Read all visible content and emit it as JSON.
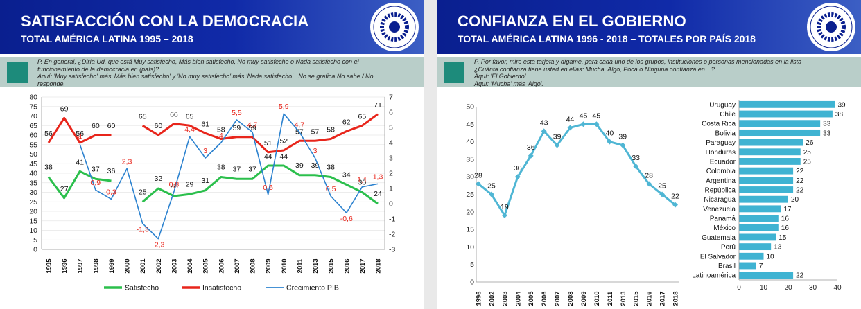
{
  "left": {
    "header": {
      "title": "SATISFACCIÓN CON LA DEMOCRACIA",
      "subtitle": "TOTAL AMÉRICA LATINA 1995 – 2018"
    },
    "question": {
      "lines": [
        "P. En general, ¿Diría Ud. que está Muy satisfecho, Más bien satisfecho, No muy satisfecho o Nada satisfecho con el",
        "funcionamiento de la democracia en (país)?",
        "Aquí: 'Muy satisfecho' más 'Más bien satisfecho' y 'No muy satisfecho' más 'Nada satisfecho' . No se grafica No sabe / No",
        "responde."
      ]
    }
  },
  "right": {
    "header": {
      "title": "CONFIANZA EN EL GOBIERNO",
      "subtitle": "TOTAL AMÉRICA LATINA 1996 - 2018 – TOTALES POR PAÍS 2018"
    },
    "question": {
      "lines": [
        "P. Por favor, mire esta tarjeta y dígame, para cada uno de los grupos, instituciones o personas mencionadas en la lista",
        "¿Cuánta confianza tiene usted en ellas: Mucha, Algo, Poca o Ninguna confianza en…?",
        "Aquí: 'El Gobierno'",
        "Aquí: 'Mucha' más 'Algo'."
      ]
    }
  },
  "colors": {
    "header_blue": "#0a1f8f",
    "question_bg": "#b9cec9",
    "question_square": "#1d8b7b",
    "satisfecho": "#2bbf4c",
    "insatisfecho": "#e8251b",
    "pib": "#2c82cf",
    "confianza_line": "#4fb6d4",
    "bar": "#3fb3d2"
  },
  "chart_data": [
    {
      "type": "line",
      "x": [
        "1995",
        "1996",
        "1997",
        "1998",
        "1999",
        "2000",
        "2001",
        "2002",
        "2003",
        "2004",
        "2005",
        "2006",
        "2007",
        "2008",
        "2009",
        "2010",
        "2011",
        "2013",
        "2015",
        "2016",
        "2017",
        "2018"
      ],
      "ylim": [
        0,
        80
      ],
      "y2lim": [
        -3,
        7
      ],
      "series": [
        {
          "name": "Satisfecho",
          "axis": "left",
          "color": "#2bbf4c",
          "values": [
            38,
            27,
            41,
            37,
            36,
            null,
            25,
            32,
            28,
            29,
            31,
            38,
            37,
            37,
            44,
            44,
            39,
            39,
            38,
            34,
            30,
            24
          ],
          "labels": [
            "38",
            "27",
            "41",
            "37",
            "36",
            null,
            "25",
            "32",
            "28",
            "29",
            "31",
            "38",
            "37",
            "37",
            "44",
            "44",
            "39",
            "39",
            "38",
            "34",
            "30",
            "24"
          ]
        },
        {
          "name": "Insatisfecho",
          "axis": "left",
          "color": "#e8251b",
          "values": [
            56,
            69,
            56,
            60,
            60,
            null,
            65,
            60,
            66,
            65,
            61,
            58,
            59,
            59,
            51,
            52,
            57,
            57,
            58,
            62,
            65,
            71
          ],
          "labels": [
            "56",
            "69",
            "56",
            "60",
            "60",
            null,
            "65",
            "60",
            "66",
            "65",
            "61",
            "58",
            "59",
            "59",
            "51",
            "52",
            "57",
            "57",
            "58",
            "62",
            "65",
            "71"
          ]
        },
        {
          "name": "Crecimiento PIB",
          "axis": "right",
          "color": "#2c82cf",
          "values": [
            null,
            null,
            3.9,
            0.9,
            0.3,
            2.3,
            -1.3,
            -2.3,
            0.8,
            4.4,
            3,
            4,
            5.5,
            4.7,
            0.6,
            5.9,
            4.7,
            3,
            0.5,
            -0.6,
            1.1,
            1.3
          ],
          "labels": [
            null,
            null,
            "4",
            "0,9",
            "0,3",
            "2,3",
            "-1,3",
            "-2,3",
            "0,8",
            "4,4",
            "3",
            "4",
            "5,5",
            "4,7",
            "0,6",
            "5,9",
            "4,7",
            "3",
            "0,5",
            "-0,6",
            "1,1",
            "1,3"
          ]
        }
      ],
      "legend": "bottom",
      "y_ticks": [
        "0",
        "5",
        "10",
        "15",
        "20",
        "25",
        "30",
        "35",
        "40",
        "45",
        "50",
        "55",
        "60",
        "65",
        "70",
        "75",
        "80"
      ],
      "y2_ticks": [
        "-3",
        "-2",
        "-1",
        "0",
        "1",
        "2",
        "3",
        "4",
        "5",
        "6",
        "7"
      ]
    },
    {
      "type": "line",
      "x": [
        "1996",
        "2002",
        "2003",
        "2004",
        "2005",
        "2006",
        "2007",
        "2008",
        "2009",
        "2010",
        "2011",
        "2013",
        "2015",
        "2016",
        "2017",
        "2018"
      ],
      "values": [
        28,
        25,
        19,
        30,
        36,
        43,
        39,
        44,
        45,
        45,
        40,
        39,
        33,
        28,
        25,
        22
      ],
      "labels": [
        "28",
        "25",
        "19",
        "30",
        "36",
        "43",
        "39",
        "44",
        "45",
        "45",
        "40",
        "39",
        "33",
        "28",
        "25",
        "22"
      ],
      "ylim": [
        0,
        50
      ],
      "y_ticks": [
        "0",
        "5",
        "10",
        "15",
        "20",
        "25",
        "30",
        "35",
        "40",
        "45",
        "50"
      ]
    },
    {
      "type": "bar",
      "orientation": "horizontal",
      "categories": [
        "Uruguay",
        "Chile",
        "Costa Rica",
        "Bolivia",
        "Paraguay",
        "Honduras",
        "Ecuador",
        "Colombia",
        "Argentina",
        "República",
        "Nicaragua",
        "Venezuela",
        "Panamá",
        "México",
        "Guatemala",
        "Perú",
        "El Salvador",
        "Brasil",
        "Latinoamérica"
      ],
      "values": [
        39,
        38,
        33,
        33,
        26,
        25,
        25,
        22,
        22,
        22,
        20,
        17,
        16,
        16,
        15,
        13,
        10,
        7,
        22
      ],
      "labels": [
        "39",
        "38",
        "33",
        "33",
        "26",
        "25",
        "25",
        "22",
        "22",
        "22",
        "20",
        "17",
        "16",
        "16",
        "15",
        "13",
        "10",
        "7",
        "22"
      ],
      "xlim": [
        0,
        40
      ],
      "x_ticks": [
        "0",
        "10",
        "20",
        "30",
        "40"
      ]
    }
  ]
}
